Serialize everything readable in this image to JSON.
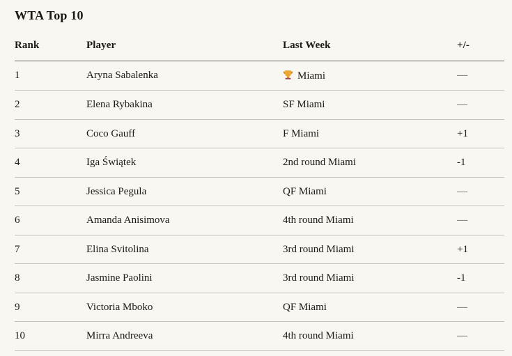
{
  "page": {
    "title": "WTA Top 10"
  },
  "table": {
    "columns": [
      {
        "key": "rank",
        "label": "Rank"
      },
      {
        "key": "player",
        "label": "Player"
      },
      {
        "key": "last_week",
        "label": "Last Week"
      },
      {
        "key": "change",
        "label": "+/-"
      }
    ],
    "rows": [
      {
        "rank": "1",
        "player": "Aryna Sabalenka",
        "last_week": "Miami",
        "last_week_icon": "trophy-icon",
        "change": "—"
      },
      {
        "rank": "2",
        "player": "Elena Rybakina",
        "last_week": "SF Miami",
        "last_week_icon": "",
        "change": "—"
      },
      {
        "rank": "3",
        "player": "Coco Gauff",
        "last_week": "F Miami",
        "last_week_icon": "",
        "change": "+1"
      },
      {
        "rank": "4",
        "player": "Iga Świątek",
        "last_week": "2nd round Miami",
        "last_week_icon": "",
        "change": "-1"
      },
      {
        "rank": "5",
        "player": "Jessica Pegula",
        "last_week": "QF Miami",
        "last_week_icon": "",
        "change": "—"
      },
      {
        "rank": "6",
        "player": "Amanda Anisimova",
        "last_week": "4th round Miami",
        "last_week_icon": "",
        "change": "—"
      },
      {
        "rank": "7",
        "player": "Elina Svitolina",
        "last_week": "3rd round Miami",
        "last_week_icon": "",
        "change": "+1"
      },
      {
        "rank": "8",
        "player": "Jasmine Paolini",
        "last_week": "3rd round Miami",
        "last_week_icon": "",
        "change": "-1"
      },
      {
        "rank": "9",
        "player": "Victoria Mboko",
        "last_week": "QF Miami",
        "last_week_icon": "",
        "change": "—"
      },
      {
        "rank": "10",
        "player": "Mirra Andreeva",
        "last_week": "4th round Miami",
        "last_week_icon": "",
        "change": "—"
      }
    ],
    "no_change_glyph": "—"
  },
  "icons": {
    "trophy_unicode": "🏆"
  },
  "colors": {
    "background": "#f9f7f1",
    "text": "#1b1914",
    "muted_dash": "#55534f",
    "header_border": "#6b675f",
    "row_border": "#c5c2bc",
    "trophy_gold": "#efa733",
    "trophy_gold_dark": "#d88a1f",
    "trophy_base": "#9c4a55"
  }
}
